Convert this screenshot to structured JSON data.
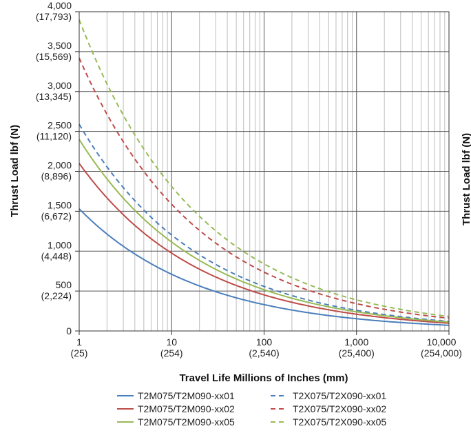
{
  "chart_data": {
    "type": "line",
    "xlabel": "Travel Life Millions of Inches (mm)",
    "ylabel": "Thrust Load lbf (N)",
    "right_ylabel_partial": "Thrust Load lbf (N)",
    "x_scale": "log",
    "xlim": [
      1,
      10000
    ],
    "ylim": [
      0,
      4000
    ],
    "grid": true,
    "legend_position": "bottom",
    "x_ticks": [
      {
        "value": 1,
        "label": "1",
        "sublabel": "(25)"
      },
      {
        "value": 10,
        "label": "10",
        "sublabel": "(254)"
      },
      {
        "value": 100,
        "label": "100",
        "sublabel": "(2,540)"
      },
      {
        "value": 1000,
        "label": "1,000",
        "sublabel": "(25,400)"
      },
      {
        "value": 10000,
        "label": "10,000",
        "sublabel": "(254,000)"
      }
    ],
    "y_ticks": [
      {
        "value": 0,
        "label": "0",
        "sublabel": ""
      },
      {
        "value": 500,
        "label": "500",
        "sublabel": "(2,224)"
      },
      {
        "value": 1000,
        "label": "1,000",
        "sublabel": "(4,448)"
      },
      {
        "value": 1500,
        "label": "1,500",
        "sublabel": "(6,672)"
      },
      {
        "value": 2000,
        "label": "2,000",
        "sublabel": "(8,896)"
      },
      {
        "value": 2500,
        "label": "2,500",
        "sublabel": "(11,120)"
      },
      {
        "value": 3000,
        "label": "3,000",
        "sublabel": "(13,345)"
      },
      {
        "value": 3500,
        "label": "3,500",
        "sublabel": "(15,569)"
      },
      {
        "value": 4000,
        "label": "4,000",
        "sublabel": "(17,793)"
      }
    ],
    "x": [
      1,
      2,
      5,
      10,
      20,
      50,
      100,
      200,
      500,
      1000,
      2000,
      5000,
      10000
    ],
    "series": [
      {
        "name": "T2M075/T2M090-xx01",
        "color": "#4a7ebb",
        "dash": "solid",
        "values": [
          1530,
          1214,
          895,
          710,
          564,
          415,
          330,
          262,
          193,
          153,
          121,
          90,
          71
        ]
      },
      {
        "name": "T2X075/T2X090-xx01",
        "color": "#4a7ebb",
        "dash": "dashed",
        "values": [
          2590,
          2056,
          1515,
          1202,
          954,
          703,
          558,
          443,
          326,
          259,
          206,
          152,
          120
        ]
      },
      {
        "name": "T2M075/T2M090-xx02",
        "color": "#be4b48",
        "dash": "solid",
        "values": [
          2100,
          1667,
          1228,
          975,
          774,
          570,
          452,
          359,
          265,
          210,
          167,
          123,
          97
        ]
      },
      {
        "name": "T2X075/T2X090-xx02",
        "color": "#be4b48",
        "dash": "dashed",
        "values": [
          3420,
          2714,
          2000,
          1587,
          1260,
          928,
          737,
          585,
          431,
          342,
          271,
          200,
          159
        ]
      },
      {
        "name": "T2M075/T2M090-xx05",
        "color": "#98b954",
        "dash": "solid",
        "values": [
          2400,
          1905,
          1403,
          1114,
          884,
          651,
          517,
          410,
          302,
          240,
          191,
          140,
          111
        ]
      },
      {
        "name": "T2X075/T2X090-xx05",
        "color": "#98b954",
        "dash": "dashed",
        "values": [
          3900,
          3095,
          2281,
          1810,
          1437,
          1058,
          840,
          667,
          491,
          390,
          310,
          228,
          181
        ]
      }
    ],
    "legend_order": [
      0,
      1,
      2,
      3,
      4,
      5
    ]
  }
}
